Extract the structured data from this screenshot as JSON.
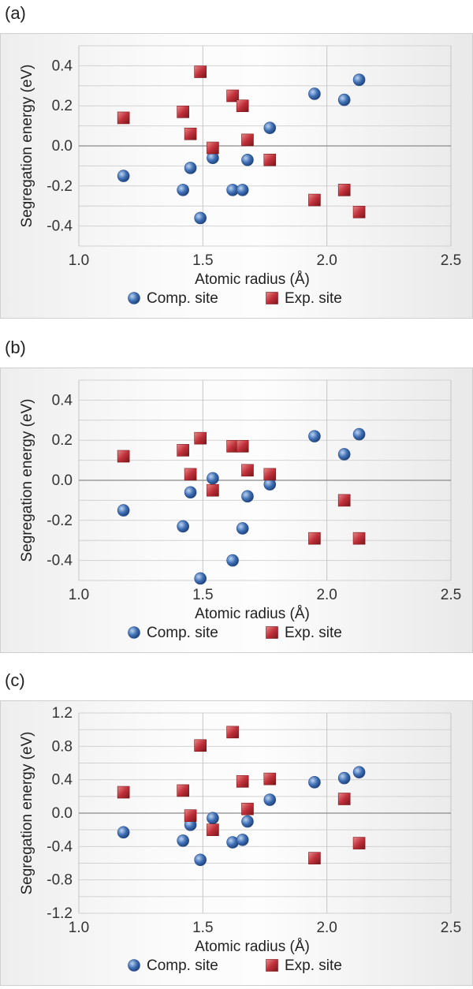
{
  "chart_data": [
    {
      "type": "scatter",
      "panel_label": "(a)",
      "xlabel": "Atomic radius (Å)",
      "ylabel": "Segregation energy (eV)",
      "xlim": [
        1.0,
        2.5
      ],
      "ylim": [
        -0.5,
        0.5
      ],
      "x_ticks": [
        1.0,
        1.5,
        2.0,
        2.5
      ],
      "x_tick_labels": [
        "1.0",
        "1.5",
        "2.0",
        "2.5"
      ],
      "y_ticks": [
        0.4,
        0.2,
        0.0,
        -0.2,
        -0.4
      ],
      "y_tick_labels": [
        "0.4",
        "0.2",
        "0.0",
        "-0.2",
        "-0.4"
      ],
      "grid": true,
      "legend_position": "bottom",
      "series": [
        {
          "name": "Comp. site",
          "marker": "circle",
          "color": "#3e6fb5",
          "points": [
            [
              1.18,
              -0.15
            ],
            [
              1.42,
              -0.22
            ],
            [
              1.45,
              -0.11
            ],
            [
              1.49,
              -0.36
            ],
            [
              1.54,
              -0.06
            ],
            [
              1.62,
              -0.22
            ],
            [
              1.66,
              -0.22
            ],
            [
              1.68,
              -0.07
            ],
            [
              1.77,
              0.09
            ],
            [
              1.95,
              0.26
            ],
            [
              2.07,
              0.23
            ],
            [
              2.13,
              0.33
            ]
          ]
        },
        {
          "name": "Exp. site",
          "marker": "square",
          "color": "#c0303a",
          "points": [
            [
              1.18,
              0.14
            ],
            [
              1.42,
              0.17
            ],
            [
              1.45,
              0.06
            ],
            [
              1.49,
              0.37
            ],
            [
              1.54,
              -0.01
            ],
            [
              1.62,
              0.25
            ],
            [
              1.66,
              0.2
            ],
            [
              1.68,
              0.03
            ],
            [
              1.77,
              -0.07
            ],
            [
              1.95,
              -0.27
            ],
            [
              2.07,
              -0.22
            ],
            [
              2.13,
              -0.33
            ]
          ]
        }
      ]
    },
    {
      "type": "scatter",
      "panel_label": "(b)",
      "xlabel": "Atomic radius (Å)",
      "ylabel": "Segregation energy (eV)",
      "xlim": [
        1.0,
        2.5
      ],
      "ylim": [
        -0.5,
        0.5
      ],
      "x_ticks": [
        1.0,
        1.5,
        2.0,
        2.5
      ],
      "x_tick_labels": [
        "1.0",
        "1.5",
        "2.0",
        "2.5"
      ],
      "y_ticks": [
        0.4,
        0.2,
        0.0,
        -0.2,
        -0.4
      ],
      "y_tick_labels": [
        "0.4",
        "0.2",
        "0.0",
        "-0.2",
        "-0.4"
      ],
      "grid": true,
      "legend_position": "bottom",
      "series": [
        {
          "name": "Comp. site",
          "marker": "circle",
          "color": "#3e6fb5",
          "points": [
            [
              1.18,
              -0.15
            ],
            [
              1.42,
              -0.23
            ],
            [
              1.45,
              -0.06
            ],
            [
              1.49,
              -0.49
            ],
            [
              1.54,
              0.01
            ],
            [
              1.62,
              -0.4
            ],
            [
              1.66,
              -0.24
            ],
            [
              1.68,
              -0.08
            ],
            [
              1.77,
              -0.02
            ],
            [
              1.95,
              0.22
            ],
            [
              2.07,
              0.13
            ],
            [
              2.13,
              0.23
            ]
          ]
        },
        {
          "name": "Exp. site",
          "marker": "square",
          "color": "#c0303a",
          "points": [
            [
              1.18,
              0.12
            ],
            [
              1.42,
              0.15
            ],
            [
              1.45,
              0.03
            ],
            [
              1.49,
              0.21
            ],
            [
              1.54,
              -0.05
            ],
            [
              1.62,
              0.17
            ],
            [
              1.66,
              0.17
            ],
            [
              1.68,
              0.05
            ],
            [
              1.77,
              0.03
            ],
            [
              1.95,
              -0.29
            ],
            [
              2.07,
              -0.1
            ],
            [
              2.13,
              -0.29
            ]
          ]
        }
      ]
    },
    {
      "type": "scatter",
      "panel_label": "(c)",
      "xlabel": "Atomic radius (Å)",
      "ylabel": "Segregation energy (eV)",
      "xlim": [
        1.0,
        2.5
      ],
      "ylim": [
        -1.2,
        1.2
      ],
      "x_ticks": [
        1.0,
        1.5,
        2.0,
        2.5
      ],
      "x_tick_labels": [
        "1.0",
        "1.5",
        "2.0",
        "2.5"
      ],
      "y_ticks": [
        1.2,
        0.8,
        0.4,
        0.0,
        -0.4,
        -0.8,
        -1.2
      ],
      "y_tick_labels": [
        "1.2",
        "0.8",
        "0.4",
        "0.0",
        "-0.4",
        "-0.8",
        "-1.2"
      ],
      "grid": true,
      "legend_position": "bottom",
      "series": [
        {
          "name": "Comp. site",
          "marker": "circle",
          "color": "#3e6fb5",
          "points": [
            [
              1.18,
              -0.23
            ],
            [
              1.42,
              -0.33
            ],
            [
              1.45,
              -0.14
            ],
            [
              1.49,
              -0.56
            ],
            [
              1.54,
              -0.06
            ],
            [
              1.62,
              -0.35
            ],
            [
              1.66,
              -0.32
            ],
            [
              1.68,
              -0.1
            ],
            [
              1.77,
              0.16
            ],
            [
              1.95,
              0.37
            ],
            [
              2.07,
              0.42
            ],
            [
              2.13,
              0.49
            ]
          ]
        },
        {
          "name": "Exp. site",
          "marker": "square",
          "color": "#c0303a",
          "points": [
            [
              1.18,
              0.25
            ],
            [
              1.42,
              0.27
            ],
            [
              1.45,
              -0.03
            ],
            [
              1.49,
              0.81
            ],
            [
              1.54,
              -0.2
            ],
            [
              1.62,
              0.97
            ],
            [
              1.66,
              0.38
            ],
            [
              1.68,
              0.05
            ],
            [
              1.77,
              0.41
            ],
            [
              1.95,
              -0.54
            ],
            [
              2.07,
              0.17
            ],
            [
              2.13,
              -0.36
            ]
          ]
        }
      ]
    }
  ]
}
